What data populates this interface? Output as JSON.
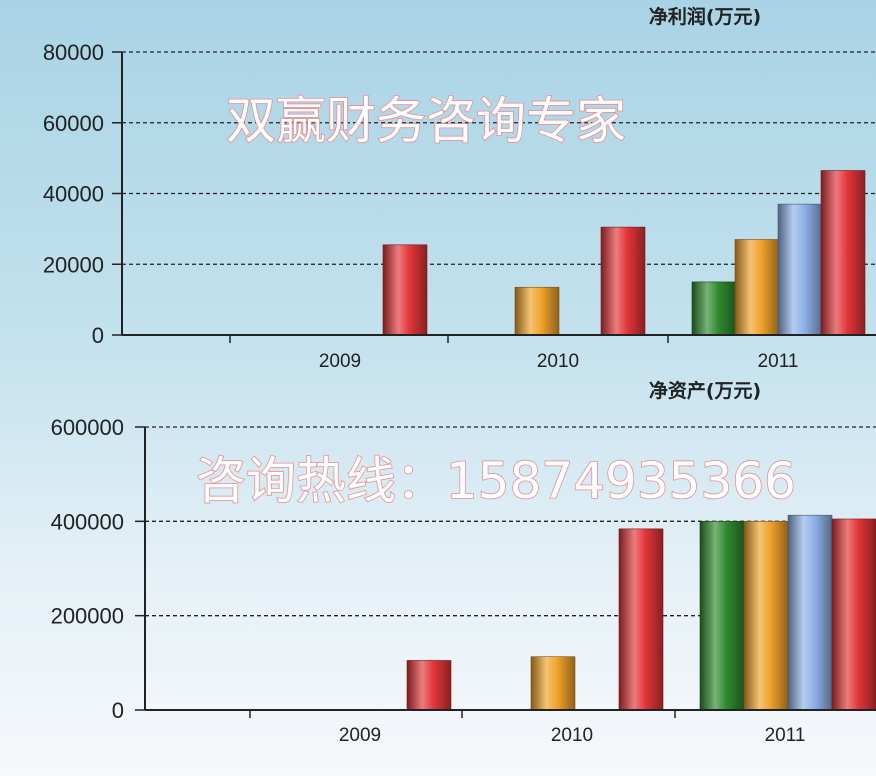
{
  "watermark": {
    "line1": "双赢财务咨询专家",
    "line2": "咨询热线：15874935366"
  },
  "colors": {
    "green": "#2f8a2f",
    "orange": "#f0a22b",
    "blue": "#8eb0e8",
    "red": "#e23538",
    "grid": "#222222"
  },
  "chart_data": [
    {
      "type": "bar",
      "title": "净利润(万元)",
      "categories": [
        "2009",
        "2010",
        "2011"
      ],
      "ylim": [
        0,
        80000
      ],
      "yticks": [
        "80000",
        "60000",
        "40000",
        "20000",
        "0"
      ],
      "grid": true,
      "series": [
        {
          "color_key": "green",
          "values": [
            null,
            null,
            15000
          ]
        },
        {
          "color_key": "orange",
          "values": [
            null,
            13500,
            27000
          ]
        },
        {
          "color_key": "blue",
          "values": [
            null,
            null,
            37000
          ]
        },
        {
          "color_key": "red",
          "values": [
            25500,
            30500,
            46500
          ]
        }
      ]
    },
    {
      "type": "bar",
      "title": "净资产(万元)",
      "categories": [
        "2009",
        "2010",
        "2011"
      ],
      "ylim": [
        0,
        600000
      ],
      "yticks": [
        "600000",
        "400000",
        "200000",
        "0"
      ],
      "grid": true,
      "series": [
        {
          "color_key": "green",
          "values": [
            null,
            null,
            400000
          ]
        },
        {
          "color_key": "orange",
          "values": [
            null,
            113000,
            400000
          ]
        },
        {
          "color_key": "blue",
          "values": [
            null,
            null,
            413000
          ]
        },
        {
          "color_key": "red",
          "values": [
            105000,
            384000,
            405000
          ]
        }
      ]
    }
  ]
}
